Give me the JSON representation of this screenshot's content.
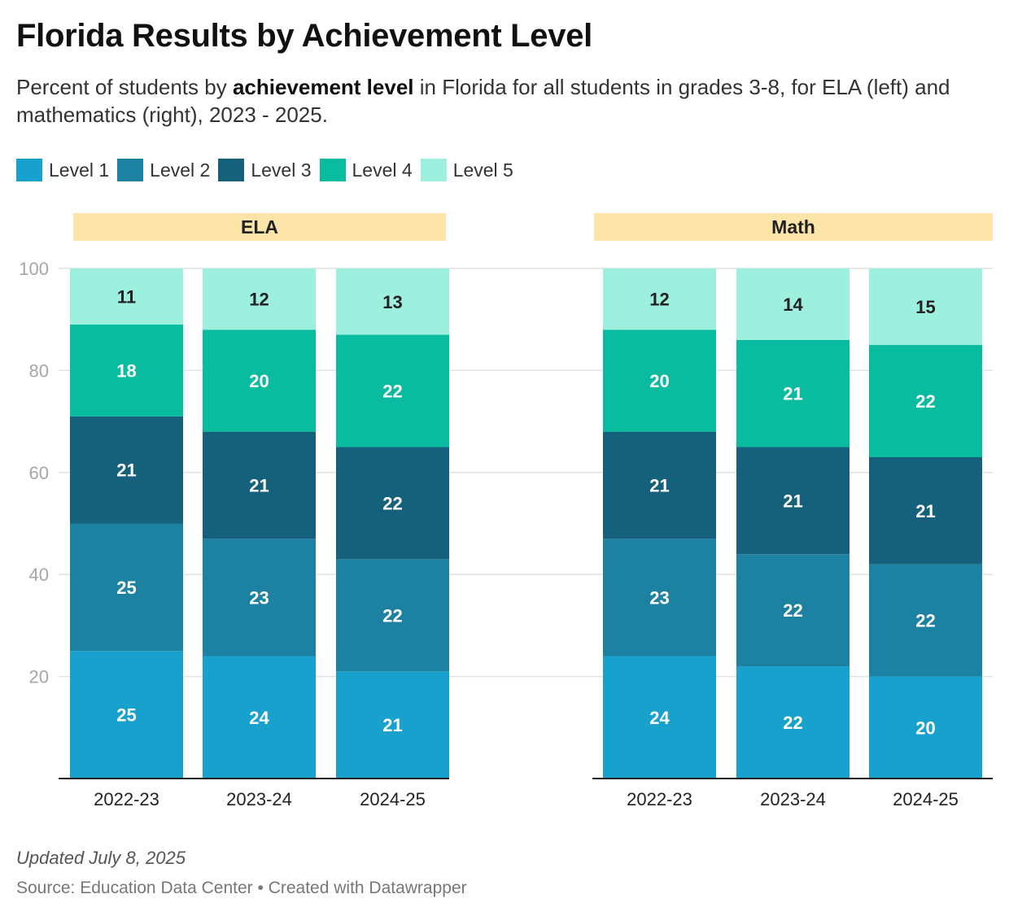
{
  "title": "Florida Results by Achievement Level",
  "subtitle": {
    "before": "Percent of students by ",
    "bold": "achievement level",
    "after": " in Florida for all students in grades 3-8, for ELA (left) and mathematics (right), 2023 - 2025."
  },
  "legend": [
    {
      "label": "Level 1",
      "color": "#18a1cd"
    },
    {
      "label": "Level 2",
      "color": "#1d81a2"
    },
    {
      "label": "Level 3",
      "color": "#15607a"
    },
    {
      "label": "Level 4",
      "color": "#09bb9f"
    },
    {
      "label": "Level 5",
      "color": "#9ef0de"
    }
  ],
  "footer": {
    "updated": "Updated July 8, 2025",
    "source": "Source: Education Data Center • Created with Datawrapper"
  },
  "chart_data": {
    "type": "bar",
    "stacked": true,
    "ylim": [
      0,
      100
    ],
    "yticks": [
      20,
      40,
      60,
      80,
      100
    ],
    "grid": true,
    "legend_placement": "top-left",
    "series_names": [
      "Level 1",
      "Level 2",
      "Level 3",
      "Level 4",
      "Level 5"
    ],
    "panels": [
      {
        "name": "ELA",
        "categories": [
          "2022-23",
          "2023-24",
          "2024-25"
        ],
        "series": [
          {
            "name": "Level 1",
            "values": [
              25,
              24,
              21
            ]
          },
          {
            "name": "Level 2",
            "values": [
              25,
              23,
              22
            ]
          },
          {
            "name": "Level 3",
            "values": [
              21,
              21,
              22
            ]
          },
          {
            "name": "Level 4",
            "values": [
              18,
              20,
              22
            ]
          },
          {
            "name": "Level 5",
            "values": [
              11,
              12,
              13
            ]
          }
        ]
      },
      {
        "name": "Math",
        "categories": [
          "2022-23",
          "2023-24",
          "2024-25"
        ],
        "series": [
          {
            "name": "Level 1",
            "values": [
              24,
              22,
              20
            ]
          },
          {
            "name": "Level 2",
            "values": [
              23,
              22,
              22
            ]
          },
          {
            "name": "Level 3",
            "values": [
              21,
              21,
              21
            ]
          },
          {
            "name": "Level 4",
            "values": [
              20,
              21,
              22
            ]
          },
          {
            "name": "Level 5",
            "values": [
              12,
              14,
              15
            ]
          }
        ]
      }
    ]
  }
}
